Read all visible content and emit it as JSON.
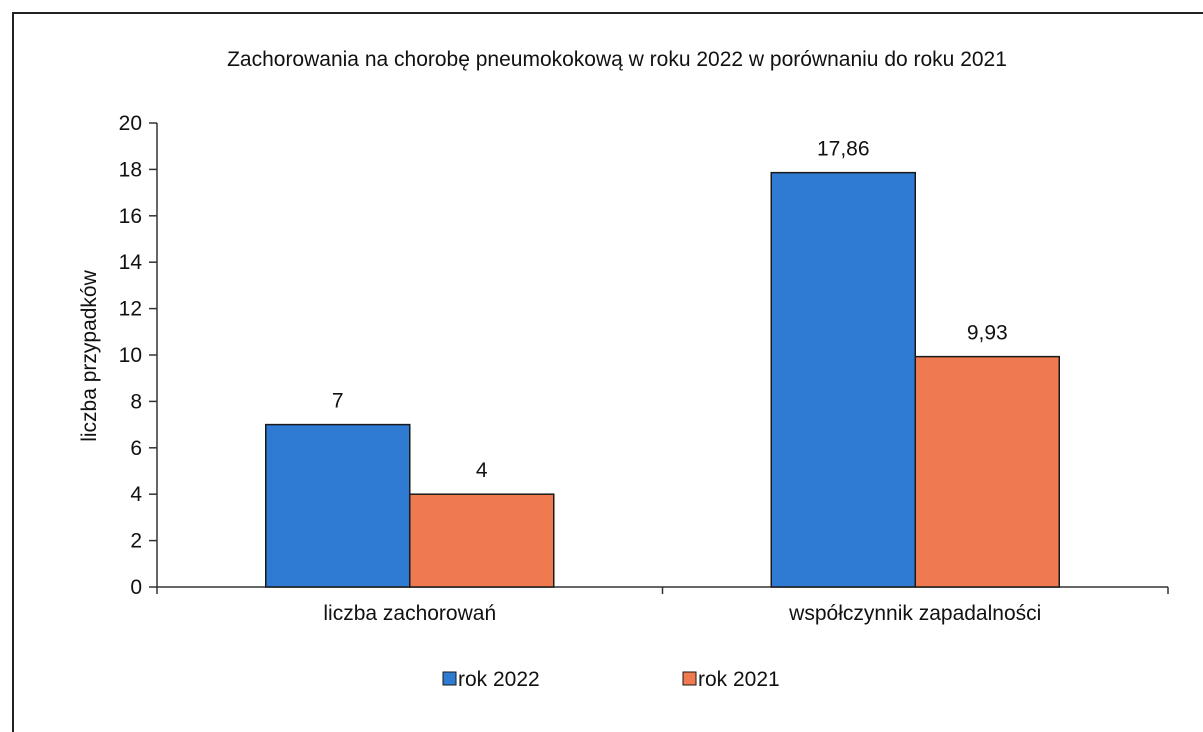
{
  "chart_data": {
    "type": "bar",
    "title": "Zachorowania na chorobę pneumokokową w roku 2022 w porównaniu do roku 2021",
    "ylabel": "liczba przypadków",
    "xlabel": "",
    "ylim": [
      0,
      20
    ],
    "ytick_step": 2,
    "grid": false,
    "legend_position": "bottom-center",
    "categories": [
      "liczba zachorowań",
      "współczynnik zapadalności"
    ],
    "series": [
      {
        "name": "rok 2022",
        "color": "#2f7ad3",
        "values": [
          7,
          17.86
        ],
        "labels": [
          "7",
          "17,86"
        ]
      },
      {
        "name": "rok 2021",
        "color": "#f07a4f",
        "values": [
          4,
          9.93
        ],
        "labels": [
          "4",
          "9,93"
        ]
      }
    ]
  }
}
